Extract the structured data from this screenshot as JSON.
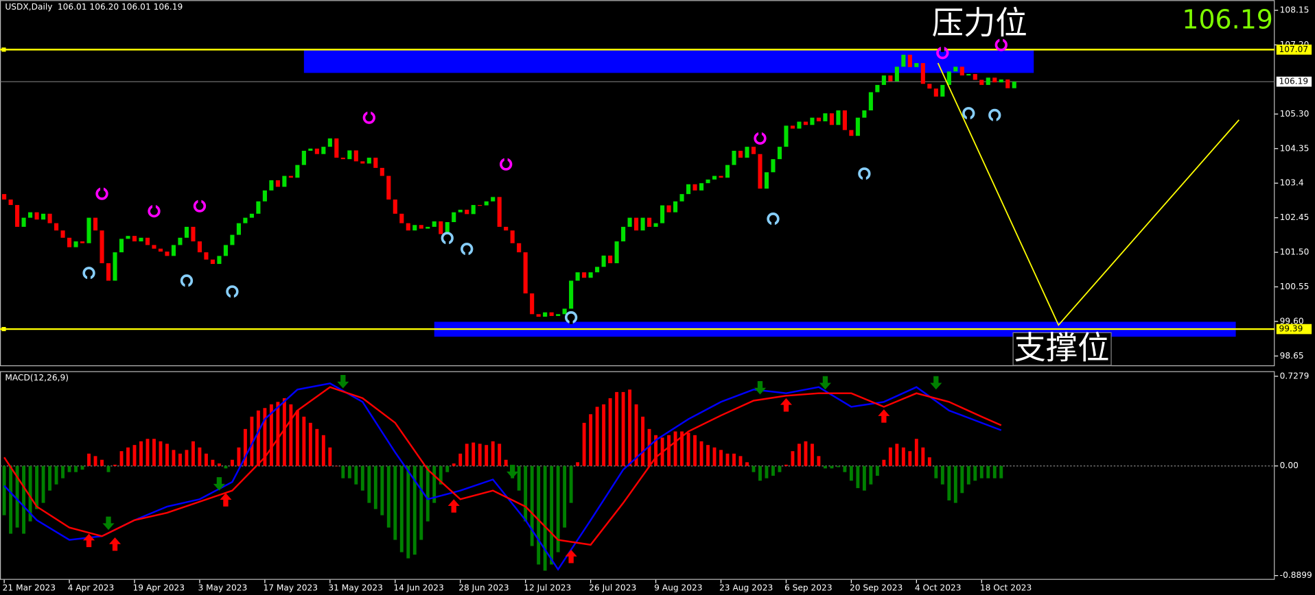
{
  "header": {
    "symbol": "USDX,Daily",
    "quote": "106.01 106.20 106.01 106.19"
  },
  "chart_data": [
    {
      "type": "candlestick",
      "categories": [
        "21 Mar 2023",
        null,
        null,
        null,
        null,
        null,
        null,
        null,
        null,
        null,
        "4 Apr 2023",
        null,
        null,
        null,
        null,
        null,
        null,
        null,
        null,
        null,
        "19 Apr 2023",
        null,
        null,
        null,
        null,
        null,
        null,
        null,
        null,
        null,
        "3 May 2023",
        null,
        null,
        null,
        null,
        null,
        null,
        null,
        null,
        null,
        "17 May 2023",
        null,
        null,
        null,
        null,
        null,
        null,
        null,
        null,
        null,
        "31 May 2023",
        null,
        null,
        null,
        null,
        null,
        null,
        null,
        null,
        null,
        "14 Jun 2023",
        null,
        null,
        null,
        null,
        null,
        null,
        null,
        null,
        null,
        "28 Jun 2023",
        null,
        null,
        null,
        null,
        null,
        null,
        null,
        null,
        null,
        "12 Jul 2023",
        null,
        null,
        null,
        null,
        null,
        null,
        null,
        null,
        null,
        "26 Jul 2023",
        null,
        null,
        null,
        null,
        null,
        null,
        null,
        null,
        null,
        "9 Aug 2023",
        null,
        null,
        null,
        null,
        null,
        null,
        null,
        null,
        null,
        "23 Aug 2023",
        null,
        null,
        null,
        null,
        null,
        null,
        null,
        null,
        null,
        "6 Sep 2023",
        null,
        null,
        null,
        null,
        null,
        null,
        null,
        null,
        null,
        "20 Sep 2023",
        null,
        null,
        null,
        null,
        null,
        null,
        null,
        null,
        null,
        "4 Oct 2023",
        null,
        null,
        null,
        null,
        null,
        null,
        null,
        null,
        null,
        "18 Oct 2023",
        null,
        null,
        null,
        null,
        null
      ],
      "open": [
        103.1,
        102.95,
        102.8,
        102.2,
        102.45,
        102.6,
        102.4,
        102.56,
        102.3,
        102.1,
        101.9,
        101.64,
        101.8,
        101.75,
        102.45,
        102.1,
        101.2,
        100.72,
        101.5,
        101.87,
        101.95,
        101.8,
        101.9,
        101.7,
        101.6,
        101.52,
        101.4,
        101.7,
        101.9,
        102.2,
        101.8,
        101.5,
        101.3,
        101.18,
        101.4,
        101.7,
        101.98,
        102.3,
        102.45,
        102.56,
        102.9,
        103.2,
        103.48,
        103.3,
        103.6,
        103.55,
        103.9,
        104.29,
        104.35,
        104.2,
        104.4,
        104.63,
        104.1,
        104.06,
        104.3,
        104.0,
        103.94,
        104.1,
        103.82,
        103.6,
        102.95,
        102.56,
        102.3,
        102.1,
        102.25,
        102.15,
        102.2,
        102.35,
        102.0,
        102.33,
        102.6,
        102.67,
        102.55,
        102.8,
        102.79,
        102.9,
        103.02,
        102.2,
        102.1,
        101.75,
        101.5,
        100.37,
        99.8,
        99.73,
        99.85,
        99.75,
        99.8,
        99.95,
        100.72,
        100.95,
        100.8,
        100.95,
        101.1,
        101.41,
        101.2,
        101.8,
        102.2,
        102.45,
        102.1,
        102.45,
        102.2,
        102.3,
        102.79,
        102.6,
        102.9,
        103.1,
        103.37,
        103.2,
        103.4,
        103.5,
        103.6,
        103.55,
        103.9,
        104.29,
        104.1,
        104.4,
        104.2,
        103.25,
        103.7,
        104.06,
        104.4,
        104.98,
        104.9,
        105.09,
        105.0,
        105.2,
        105.1,
        105.32,
        105.0,
        105.4,
        104.86,
        104.7,
        105.2,
        105.4,
        105.9,
        106.1,
        106.36,
        106.2,
        106.6,
        106.93,
        106.59,
        106.7,
        106.13,
        106.0,
        105.78,
        106.1,
        106.47,
        106.6,
        106.36,
        106.4,
        106.24,
        106.1,
        106.3,
        106.17,
        106.25,
        106.01
      ],
      "close": [
        102.95,
        102.8,
        102.2,
        102.45,
        102.6,
        102.4,
        102.56,
        102.3,
        102.1,
        101.9,
        101.64,
        101.8,
        101.75,
        102.45,
        102.1,
        101.2,
        100.72,
        101.5,
        101.87,
        101.95,
        101.8,
        101.9,
        101.7,
        101.6,
        101.52,
        101.4,
        101.7,
        101.9,
        102.2,
        101.8,
        101.5,
        101.3,
        101.18,
        101.4,
        101.7,
        101.98,
        102.3,
        102.45,
        102.56,
        102.9,
        103.2,
        103.48,
        103.3,
        103.6,
        103.55,
        103.9,
        104.29,
        104.35,
        104.2,
        104.4,
        104.63,
        104.1,
        104.06,
        104.3,
        104.0,
        103.94,
        104.1,
        103.82,
        103.6,
        102.95,
        102.56,
        102.3,
        102.1,
        102.25,
        102.15,
        102.2,
        102.35,
        102.0,
        102.33,
        102.6,
        102.67,
        102.55,
        102.8,
        102.79,
        102.9,
        103.02,
        102.2,
        102.1,
        101.75,
        101.5,
        100.37,
        99.8,
        99.73,
        99.85,
        99.75,
        99.8,
        99.95,
        100.72,
        100.95,
        100.8,
        100.95,
        101.1,
        101.41,
        101.2,
        101.8,
        102.2,
        102.45,
        102.1,
        102.45,
        102.2,
        102.3,
        102.79,
        102.6,
        102.9,
        103.1,
        103.37,
        103.2,
        103.4,
        103.5,
        103.6,
        103.55,
        103.9,
        104.29,
        104.1,
        104.4,
        104.2,
        103.25,
        103.7,
        104.06,
        104.4,
        104.98,
        104.9,
        105.09,
        105.0,
        105.2,
        105.1,
        105.32,
        105.0,
        105.4,
        104.86,
        104.7,
        105.2,
        105.4,
        105.9,
        106.1,
        106.36,
        106.2,
        106.6,
        106.93,
        106.59,
        106.7,
        106.13,
        106.0,
        105.78,
        106.1,
        106.47,
        106.6,
        106.36,
        106.4,
        106.24,
        106.1,
        106.3,
        106.17,
        106.25,
        106.01,
        106.19
      ],
      "up_color": "#00e000",
      "down_color": "#ff0000",
      "ylim": [
        98.37,
        108.43
      ],
      "yticks": [
        {
          "value": 108.15,
          "label": "108.15"
        },
        {
          "value": 107.2,
          "label": "107.20"
        },
        {
          "value": 105.3,
          "label": "105.30"
        },
        104.35,
        103.4,
        102.45,
        {
          "value": 101.5,
          "label": "101.50"
        },
        100.55,
        {
          "value": 99.6,
          "label": "99.60"
        },
        98.65
      ],
      "levels": [
        {
          "value": 107.07,
          "label": "107.07"
        },
        {
          "value": 99.39,
          "label": "99.39"
        }
      ],
      "level_color": "#ffff00",
      "current": {
        "value": 106.19,
        "label": "106.19"
      },
      "zones": [
        {
          "x0": 46,
          "x1": 158,
          "y0": 106.43,
          "y1": 107.07
        },
        {
          "x0": 66,
          "x1": 189,
          "y0": 99.18,
          "y1": 99.59
        }
      ],
      "zone_color": "#0000ff",
      "projection": {
        "x": [
          143.3,
          161.8,
          189.5
        ],
        "y": [
          106.7,
          99.5,
          105.14
        ],
        "color": "#ffff00"
      },
      "buy_signals": {
        "x": [
          13,
          28,
          35,
          68,
          71,
          87,
          118,
          132,
          148,
          152
        ],
        "y": [
          100.93,
          100.72,
          100.42,
          101.89,
          101.59,
          99.71,
          102.42,
          103.66,
          105.32,
          105.27
        ],
        "color": "#87cefa"
      },
      "sell_signals": {
        "x": [
          15,
          23,
          30,
          56,
          77,
          116,
          144,
          153
        ],
        "y": [
          103.11,
          102.63,
          102.77,
          105.2,
          103.92,
          104.63,
          106.98,
          107.2
        ],
        "color": "#ff00ff"
      },
      "annotations": [
        "压力位",
        "支撑位"
      ]
    },
    {
      "type": "macd",
      "title": "MACD(12,26,9)",
      "values": [
        -0.4,
        -0.55,
        -0.5,
        -0.55,
        -0.45,
        -0.35,
        -0.3,
        -0.2,
        -0.15,
        -0.1,
        -0.05,
        -0.05,
        -0.03,
        0.1,
        0.08,
        0.05,
        -0.05,
        0.01,
        0.12,
        0.15,
        0.17,
        0.2,
        0.22,
        0.22,
        0.2,
        0.18,
        0.13,
        0.1,
        0.13,
        0.2,
        0.15,
        0.1,
        0.05,
        0.02,
        -0.02,
        0.05,
        0.15,
        0.3,
        0.4,
        0.45,
        0.47,
        0.5,
        0.52,
        0.55,
        0.5,
        0.45,
        0.4,
        0.35,
        0.3,
        0.25,
        0.15,
        0.0,
        -0.1,
        -0.1,
        -0.15,
        -0.2,
        -0.3,
        -0.35,
        -0.4,
        -0.5,
        -0.6,
        -0.7,
        -0.75,
        -0.72,
        -0.6,
        -0.45,
        -0.3,
        -0.15,
        -0.05,
        0.02,
        0.1,
        0.18,
        0.19,
        0.18,
        0.17,
        0.2,
        0.18,
        0.05,
        -0.1,
        -0.2,
        -0.45,
        -0.65,
        -0.8,
        -0.85,
        -0.8,
        -0.7,
        -0.5,
        -0.3,
        0.03,
        0.35,
        0.42,
        0.48,
        0.5,
        0.55,
        0.6,
        0.6,
        0.62,
        0.5,
        0.4,
        0.3,
        0.25,
        0.23,
        0.25,
        0.28,
        0.28,
        0.27,
        0.25,
        0.2,
        0.17,
        0.15,
        0.13,
        0.1,
        0.1,
        0.08,
        0.03,
        -0.05,
        -0.12,
        -0.1,
        -0.08,
        -0.05,
        0.01,
        0.12,
        0.18,
        0.2,
        0.18,
        0.08,
        -0.02,
        -0.02,
        -0.01,
        -0.05,
        -0.12,
        -0.18,
        -0.2,
        -0.15,
        -0.08,
        0.05,
        0.15,
        0.18,
        0.15,
        0.12,
        0.22,
        0.15,
        0.07,
        -0.1,
        -0.15,
        -0.28,
        -0.3,
        -0.22,
        -0.15,
        -0.12,
        -0.1,
        -0.1,
        -0.1,
        -0.1,
        null,
        null
      ],
      "up_color": "#ff0000",
      "down_color": "#008000",
      "lines": [
        {
          "color": "#0000ff",
          "x": [
            0,
            5,
            10,
            15,
            20,
            25,
            30,
            35,
            40,
            45,
            50,
            55,
            60,
            65,
            70,
            75,
            80,
            85,
            90,
            95,
            100,
            105,
            110,
            115,
            120,
            125,
            130,
            135,
            140,
            145,
            150,
            153
          ],
          "values": [
            -0.16,
            -0.44,
            -0.6,
            -0.57,
            -0.44,
            -0.33,
            -0.27,
            -0.13,
            0.38,
            0.62,
            0.67,
            0.52,
            0.11,
            -0.27,
            -0.2,
            -0.11,
            -0.44,
            -0.84,
            -0.44,
            -0.03,
            0.21,
            0.38,
            0.52,
            0.62,
            0.59,
            0.64,
            0.48,
            0.52,
            0.64,
            0.45,
            0.35,
            0.29
          ]
        },
        {
          "color": "#ff0000",
          "x": [
            0,
            5,
            10,
            15,
            20,
            25,
            30,
            35,
            40,
            45,
            50,
            55,
            60,
            65,
            70,
            75,
            80,
            85,
            90,
            95,
            100,
            105,
            110,
            115,
            120,
            125,
            130,
            135,
            140,
            145,
            150,
            153
          ],
          "values": [
            0.07,
            -0.33,
            -0.5,
            -0.57,
            -0.44,
            -0.38,
            -0.29,
            -0.2,
            0.07,
            0.45,
            0.64,
            0.55,
            0.35,
            -0.03,
            -0.27,
            -0.2,
            -0.33,
            -0.6,
            -0.64,
            -0.3,
            0.07,
            0.28,
            0.41,
            0.53,
            0.57,
            0.59,
            0.59,
            0.48,
            0.59,
            0.52,
            0.4,
            0.33
          ]
        }
      ],
      "up_arrows": {
        "x": [
          13,
          17,
          34,
          69,
          87,
          120,
          135
        ],
        "y": [
          -0.55,
          -0.58,
          -0.22,
          -0.27,
          -0.68,
          0.55,
          0.46
        ],
        "color": "#ff0000"
      },
      "down_arrows": {
        "x": [
          16,
          33,
          52,
          78,
          116,
          126,
          143
        ],
        "y": [
          -0.52,
          -0.2,
          0.63,
          -0.1,
          0.58,
          0.62,
          0.62
        ],
        "color": "#008000"
      },
      "ylim": [
        -0.924,
        0.769
      ],
      "yticks": [
        0.7279,
        {
          "value": 0,
          "label": "0.00"
        },
        -0.8899
      ]
    }
  ]
}
